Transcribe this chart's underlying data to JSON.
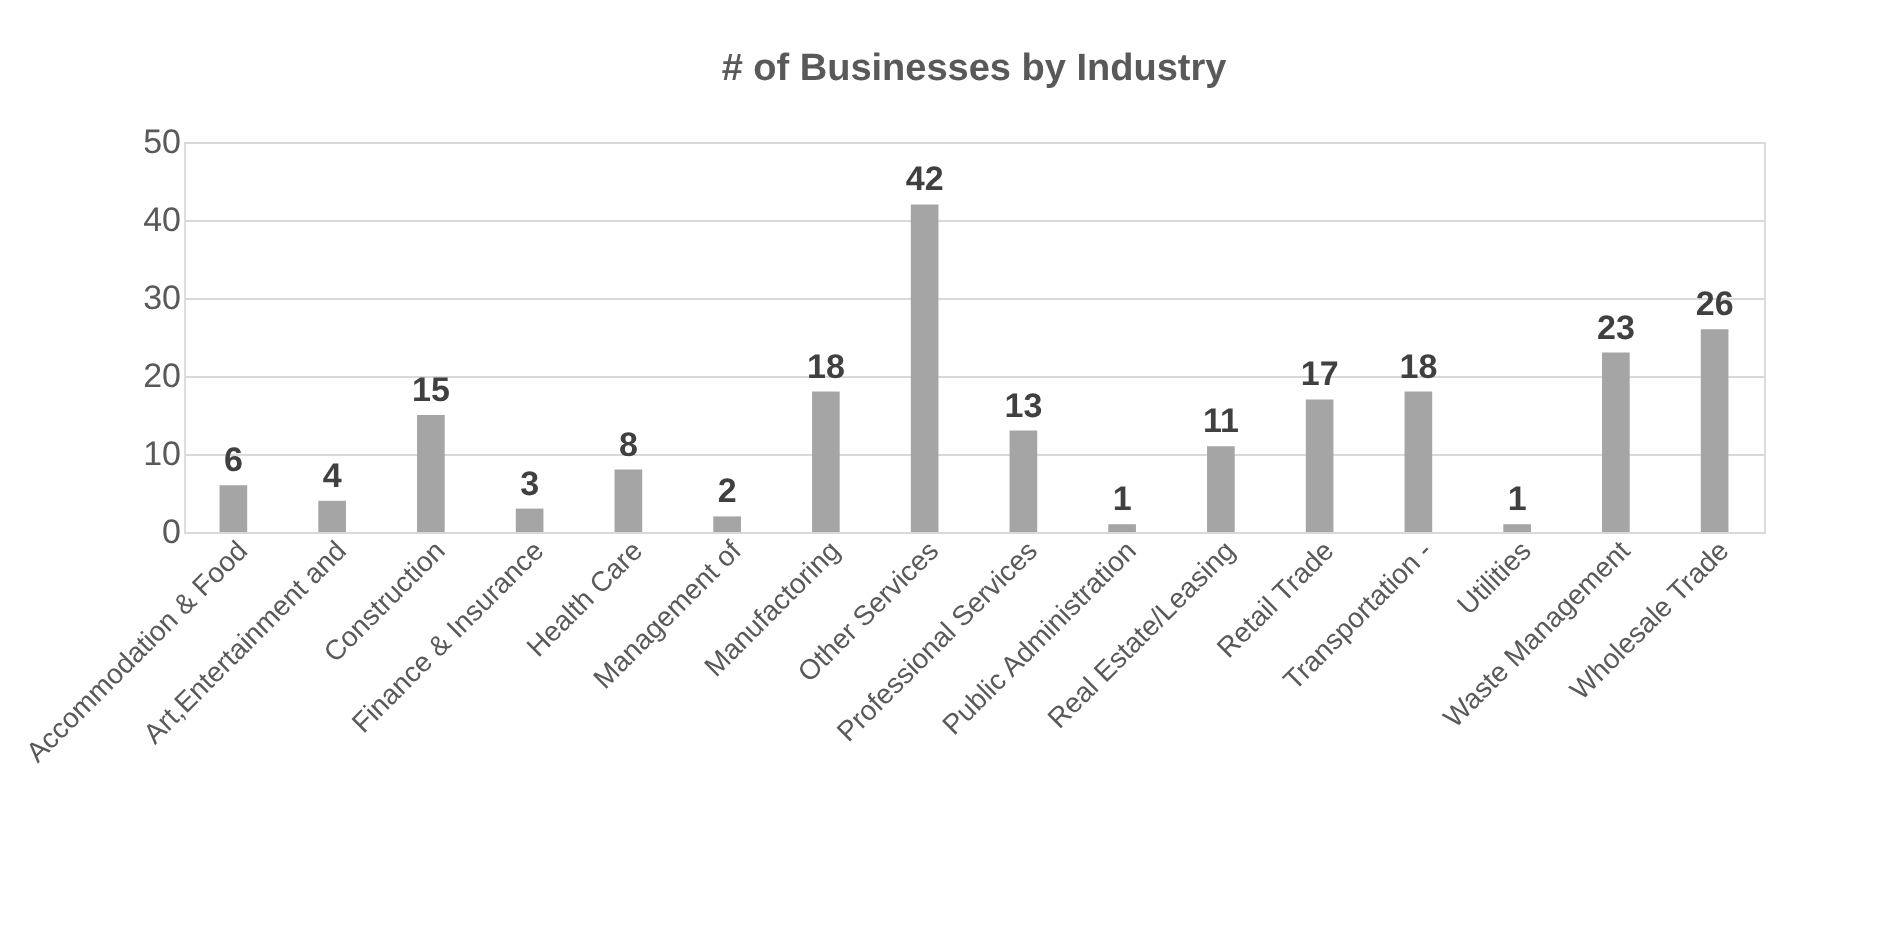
{
  "chart_data": {
    "type": "bar",
    "title": "# of Businesses by Industry",
    "categories": [
      "Accommodation & Food",
      "Art,Entertainment and",
      "Construction",
      "Finance & Insurance",
      "Health Care",
      "Management of",
      "Manufactoring",
      "Other Services",
      "Professional Services",
      "Public Administration",
      "Real Estate/Leasing",
      "Retail Trade",
      "Transportation -",
      "Utilities",
      "Waste Management",
      "Wholesale Trade"
    ],
    "values": [
      6,
      4,
      15,
      3,
      8,
      2,
      18,
      42,
      13,
      1,
      11,
      17,
      18,
      1,
      23,
      26
    ],
    "color": "#a5a5a5",
    "ylim": [
      0,
      50
    ],
    "yticks": [
      0,
      10,
      20,
      30,
      40,
      50
    ],
    "grid": "y",
    "data_labels": true
  }
}
